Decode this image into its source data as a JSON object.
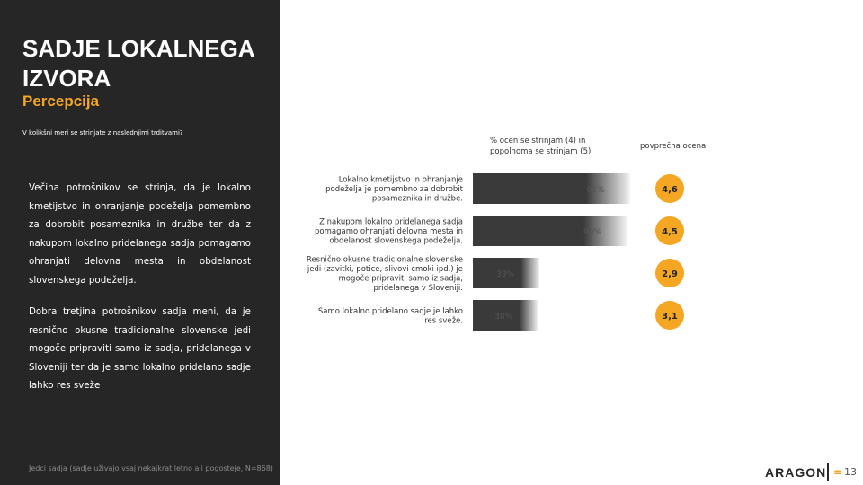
{
  "slide": {
    "title": "SADJE LOKALNEGA IZVORA",
    "subtitle": "Percepcija",
    "question": "V kolikšni meri se strinjate z naslednjimi trditvami?",
    "summary_1": "Večina potrošnikov se strinja, da je lokalno kmetijstvo in ohranjanje podeželja pomembno za dobrobit posameznika in družbe ter da z nakupom lokalno pridelanega sadja pomagamo ohranjati delovna mesta in obdelanost slovenskega podeželja.",
    "summary_2": "Dobra tretjina potrošnikov sadja meni, da je resnično okusne tradicionalne slovenske jedi mogoče pripraviti samo iz sadja, pridelanega v Sloveniji ter da je samo lokalno pridelano sadje lahko res sveže",
    "footnote": "Jedci sadja (sadje uživajo vsaj nekajkrat letno ali pogosteje, N=868)",
    "brand": "ARAGON",
    "brand_mark": "=",
    "page_number": "13"
  },
  "colors": {
    "dark_panel": "#262626",
    "accent": "#f5a623",
    "bar": "#3a3a3a",
    "bar_end": "#eeeeee",
    "circle": "#f5a623"
  },
  "chart_data": {
    "type": "bar",
    "orientation": "horizontal",
    "pct_header": "% ocen se strinjam (4) in popolnoma se strinjam (5)",
    "avg_header": "povprečna ocena",
    "categories": [
      "Lokalno kmetijstvo in ohranjanje podeželja je pomembno za dobrobit posameznika in družbe.",
      "Z nakupom lokalno pridelanega sadja pomagamo ohranjati delovna mesta in obdelanost slovenskega podeželja.",
      "Resnično okusne tradicionalne slovenske jedi (zavitki, potice, slivovi cmoki ipd.) je mogoče pripraviti samo iz sadja, pridelanega v Sloveniji.",
      "Samo lokalno pridelano sadje je lahko res sveže."
    ],
    "category_lines": [
      [
        "Lokalno kmetijstvo in ohranjanje",
        "podeželja je pomembno za dobrobit",
        "posameznika in družbe."
      ],
      [
        "Z nakupom lokalno pridelanega sadja",
        "pomagamo ohranjati delovna mesta in",
        "obdelanost slovenskega podeželja."
      ],
      [
        "Resnično okusne tradicionalne slovenske",
        "jedi (zavitki, potice, slivovi cmoki ipd.) je",
        "mogoče pripraviti samo iz sadja,",
        "pridelanega v Sloveniji."
      ],
      [
        "Samo lokalno pridelano sadje je lahko",
        "res sveže."
      ]
    ],
    "values": [
      92,
      90,
      39,
      38
    ],
    "value_labels": [
      "92%",
      "90%",
      "39%",
      "38%"
    ],
    "averages": [
      4.6,
      4.5,
      2.9,
      3.1
    ],
    "average_labels": [
      "4,6",
      "4,5",
      "2,9",
      "3,1"
    ],
    "xlim": [
      0,
      100
    ]
  }
}
